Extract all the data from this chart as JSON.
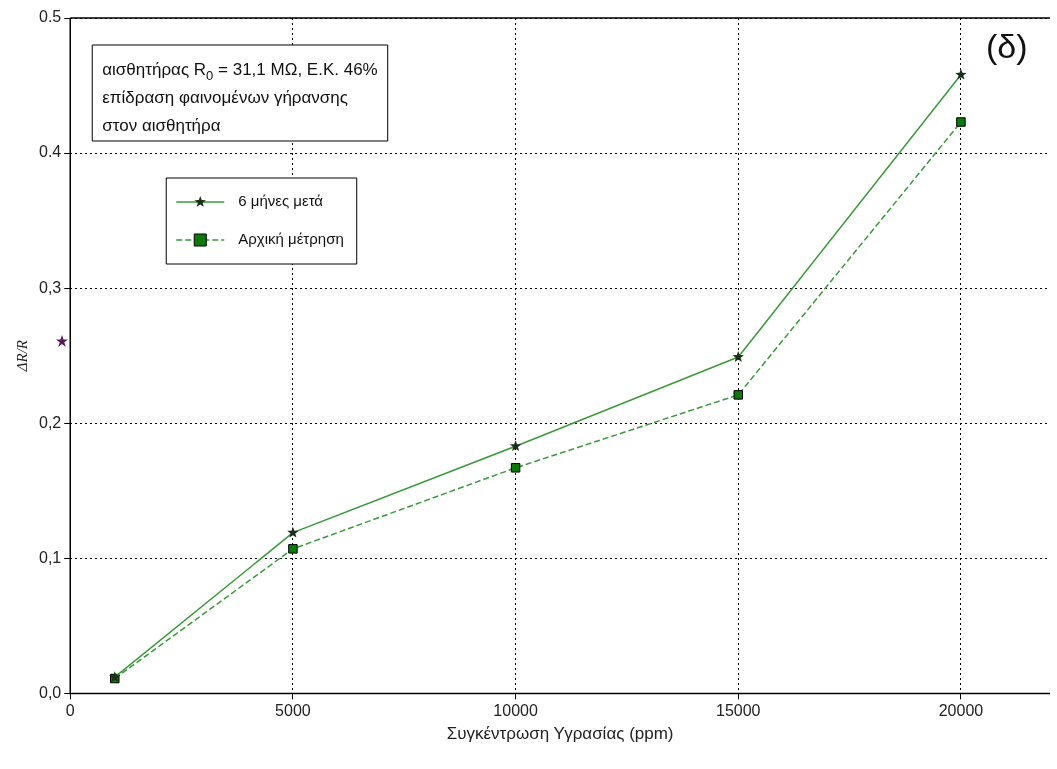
{
  "chart_data": {
    "type": "line",
    "xlabel": "Συγκέντρωση Υγρασίας (ppm)",
    "ylabel": "ΔR/R",
    "x": [
      1000,
      5000,
      10000,
      15000,
      20000
    ],
    "series": [
      {
        "name": "6 μήνες μετά",
        "color": "#3a993a",
        "marker": "star",
        "line_style": "solid",
        "values": [
          0.012,
          0.119,
          0.183,
          0.249,
          0.458
        ]
      },
      {
        "name": "Αρχική μέτρηση",
        "color": "#3a993a",
        "marker": "square",
        "line_style": "dashed",
        "values": [
          0.011,
          0.107,
          0.167,
          0.221,
          0.423
        ]
      }
    ],
    "xlim": [
      0,
      22000
    ],
    "xticks": [
      0,
      5000,
      10000,
      15000,
      20000
    ],
    "ylim": [
      0,
      0.5
    ],
    "yticks": [
      {
        "value": 0,
        "label": "0,0"
      },
      {
        "value": 0.1,
        "label": "0,1"
      },
      {
        "value": 0.2,
        "label": "0,2"
      },
      {
        "value": 0.3,
        "label": "0,3"
      },
      {
        "value": 0.4,
        "label": "0.4"
      },
      {
        "value": 0.5,
        "label": "0.5"
      }
    ],
    "grid": true,
    "legend": "top left",
    "annotations": [
      "αισθητήρας R$_{0}$ = 31,1 ΜΩ, Ε.Κ. 46%\nεπίδραση φαινομένων γήρανσης\nστον αισθητήρα",
      "(δ)"
    ]
  }
}
